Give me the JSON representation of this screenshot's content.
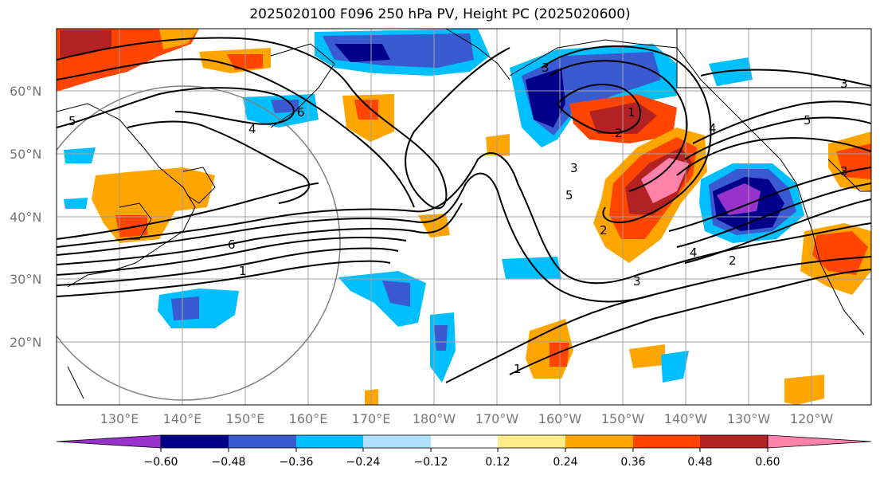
{
  "title": "2025020100 F096 250 hPa PV, Height PC (2025020600)",
  "map": {
    "lat_ticks": [
      "60°N",
      "50°N",
      "40°N",
      "30°N",
      "20°N"
    ],
    "lon_ticks": [
      "130°E",
      "140°E",
      "150°E",
      "160°E",
      "170°E",
      "180°W",
      "170°W",
      "160°W",
      "150°W",
      "140°W",
      "130°W",
      "120°W"
    ],
    "contour_labels": [
      "5",
      "4",
      "6",
      "6",
      "1",
      "3",
      "1",
      "2",
      "3",
      "5",
      "2",
      "4",
      "4",
      "2",
      "3",
      "5",
      "3",
      "3",
      "1"
    ]
  },
  "colorbar": {
    "labels": [
      "−0.60",
      "−0.48",
      "−0.36",
      "−0.24",
      "−0.12",
      "0.12",
      "0.24",
      "0.36",
      "0.48",
      "0.60"
    ],
    "colors": [
      "#9932cc",
      "#00008b",
      "#3a5bcf",
      "#00bfff",
      "#b0e2ff",
      "#ffffff",
      "#ffec8b",
      "#ffa500",
      "#ff4500",
      "#b22222",
      "#ff82ab"
    ]
  }
}
